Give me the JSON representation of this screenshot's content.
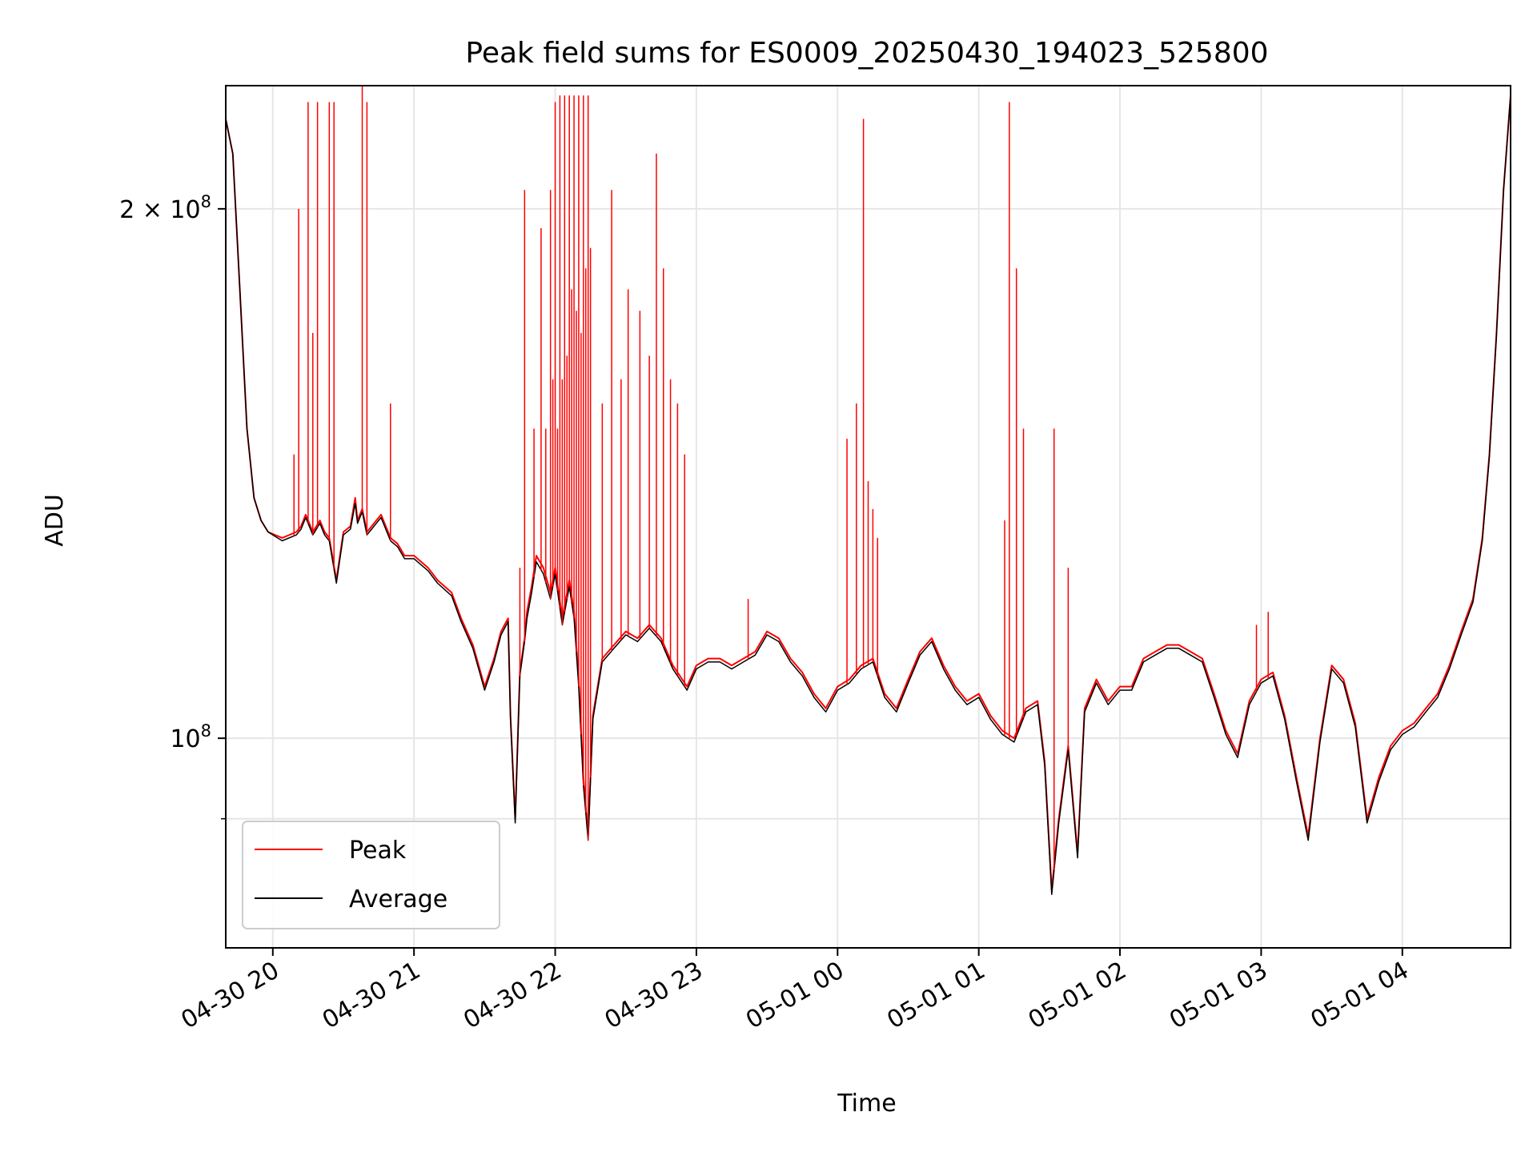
{
  "chart_data": {
    "type": "line",
    "title": "Peak field sums for ES0009_20250430_194023_525800",
    "xlabel": "Time",
    "ylabel": "ADU",
    "y_scale": "log",
    "ylim": [
      76000000,
      235000000
    ],
    "xlim": [
      "2025-04-30 19:40",
      "2025-05-01 04:46"
    ],
    "grid": true,
    "legend_position": "lower-left",
    "x_ticks": [
      {
        "t": "2025-04-30 20:00",
        "label": "04-30 20"
      },
      {
        "t": "2025-04-30 21:00",
        "label": "04-30 21"
      },
      {
        "t": "2025-04-30 22:00",
        "label": "04-30 22"
      },
      {
        "t": "2025-04-30 23:00",
        "label": "04-30 23"
      },
      {
        "t": "2025-05-01 00:00",
        "label": "05-01 00"
      },
      {
        "t": "2025-05-01 01:00",
        "label": "05-01 01"
      },
      {
        "t": "2025-05-01 02:00",
        "label": "05-01 02"
      },
      {
        "t": "2025-05-01 03:00",
        "label": "05-01 03"
      },
      {
        "t": "2025-05-01 04:00",
        "label": "05-01 04"
      }
    ],
    "y_ticks": [
      {
        "value": 100000000,
        "base": "10",
        "exp": "8",
        "coef": ""
      },
      {
        "value": 200000000,
        "base": "10",
        "exp": "8",
        "coef": "2 × "
      }
    ],
    "y_minor_ticks": [
      90000000
    ],
    "series": [
      {
        "name": "Peak",
        "color": "#ff0000",
        "x": [
          "2025-04-30 19:40",
          "2025-04-30 19:43",
          "2025-04-30 19:46",
          "2025-04-30 19:49",
          "2025-04-30 19:52",
          "2025-04-30 19:55",
          "2025-04-30 19:58",
          "2025-04-30 20:04",
          "2025-04-30 20:10",
          "2025-04-30 20:12",
          "2025-04-30 20:14",
          "2025-04-30 20:17",
          "2025-04-30 20:20",
          "2025-04-30 20:22",
          "2025-04-30 20:24",
          "2025-04-30 20:27",
          "2025-04-30 20:30",
          "2025-04-30 20:33",
          "2025-04-30 20:35",
          "2025-04-30 20:36",
          "2025-04-30 20:38",
          "2025-04-30 20:40",
          "2025-04-30 20:42",
          "2025-04-30 20:44",
          "2025-04-30 20:46",
          "2025-04-30 20:50",
          "2025-04-30 20:53",
          "2025-04-30 20:56",
          "2025-04-30 21:00",
          "2025-04-30 21:06",
          "2025-04-30 21:10",
          "2025-04-30 21:16",
          "2025-04-30 21:20",
          "2025-04-30 21:25",
          "2025-04-30 21:30",
          "2025-04-30 21:34",
          "2025-04-30 21:37",
          "2025-04-30 21:40",
          "2025-04-30 21:41",
          "2025-04-30 21:43",
          "2025-04-30 21:45",
          "2025-04-30 21:47",
          "2025-04-30 21:48",
          "2025-04-30 21:50",
          "2025-04-30 21:52",
          "2025-04-30 21:55",
          "2025-04-30 21:58",
          "2025-04-30 22:00",
          "2025-04-30 22:03",
          "2025-04-30 22:06",
          "2025-04-30 22:08",
          "2025-04-30 22:10",
          "2025-04-30 22:12",
          "2025-04-30 22:14",
          "2025-04-30 22:16",
          "2025-04-30 22:20",
          "2025-04-30 22:25",
          "2025-04-30 22:30",
          "2025-04-30 22:35",
          "2025-04-30 22:40",
          "2025-04-30 22:45",
          "2025-04-30 22:50",
          "2025-04-30 22:56",
          "2025-04-30 23:00",
          "2025-04-30 23:05",
          "2025-04-30 23:10",
          "2025-04-30 23:15",
          "2025-04-30 23:20",
          "2025-04-30 23:25",
          "2025-04-30 23:30",
          "2025-04-30 23:35",
          "2025-04-30 23:40",
          "2025-04-30 23:45",
          "2025-04-30 23:50",
          "2025-04-30 23:55",
          "2025-05-01 00:00",
          "2025-05-01 00:05",
          "2025-05-01 00:10",
          "2025-05-01 00:15",
          "2025-05-01 00:20",
          "2025-05-01 00:25",
          "2025-05-01 00:30",
          "2025-05-01 00:35",
          "2025-05-01 00:40",
          "2025-05-01 00:45",
          "2025-05-01 00:50",
          "2025-05-01 00:55",
          "2025-05-01 01:00",
          "2025-05-01 01:05",
          "2025-05-01 01:10",
          "2025-05-01 01:15",
          "2025-05-01 01:20",
          "2025-05-01 01:25",
          "2025-05-01 01:28",
          "2025-05-01 01:31",
          "2025-05-01 01:34",
          "2025-05-01 01:38",
          "2025-05-01 01:42",
          "2025-05-01 01:45",
          "2025-05-01 01:50",
          "2025-05-01 01:55",
          "2025-05-01 02:00",
          "2025-05-01 02:05",
          "2025-05-01 02:10",
          "2025-05-01 02:15",
          "2025-05-01 02:20",
          "2025-05-01 02:25",
          "2025-05-01 02:30",
          "2025-05-01 02:35",
          "2025-05-01 02:40",
          "2025-05-01 02:45",
          "2025-05-01 02:50",
          "2025-05-01 02:55",
          "2025-05-01 03:00",
          "2025-05-01 03:05",
          "2025-05-01 03:10",
          "2025-05-01 03:15",
          "2025-05-01 03:20",
          "2025-05-01 03:25",
          "2025-05-01 03:30",
          "2025-05-01 03:35",
          "2025-05-01 03:40",
          "2025-05-01 03:45",
          "2025-05-01 03:50",
          "2025-05-01 03:55",
          "2025-05-01 04:00",
          "2025-05-01 04:05",
          "2025-05-01 04:10",
          "2025-05-01 04:15",
          "2025-05-01 04:20",
          "2025-05-01 04:25",
          "2025-05-01 04:30",
          "2025-05-01 04:34",
          "2025-05-01 04:37",
          "2025-05-01 04:40",
          "2025-05-01 04:43",
          "2025-05-01 04:46"
        ],
        "values": [
          225000000,
          215000000,
          180000000,
          150000000,
          137000000,
          133000000,
          131000000,
          130000000,
          131000000,
          132000000,
          134000000,
          131000000,
          133000000,
          131000000,
          130000000,
          123000000,
          131000000,
          132000000,
          137000000,
          133000000,
          135000000,
          131000000,
          132000000,
          133000000,
          134000000,
          130000000,
          129000000,
          127000000,
          127000000,
          125000000,
          123000000,
          121000000,
          117000000,
          113000000,
          107000000,
          111000000,
          115000000,
          117000000,
          103000000,
          90000000,
          109000000,
          114000000,
          118000000,
          122000000,
          127000000,
          125000000,
          121000000,
          125000000,
          117000000,
          123000000,
          118000000,
          108000000,
          95000000,
          88000000,
          103000000,
          111000000,
          113000000,
          115000000,
          114000000,
          116000000,
          114000000,
          110000000,
          107000000,
          110000000,
          111000000,
          111000000,
          110000000,
          111000000,
          112000000,
          115000000,
          114000000,
          111000000,
          109000000,
          106000000,
          104000000,
          107000000,
          108000000,
          110000000,
          111000000,
          106000000,
          104000000,
          108000000,
          112000000,
          114000000,
          110000000,
          107000000,
          105000000,
          106000000,
          103000000,
          101000000,
          100000000,
          104000000,
          105000000,
          97000000,
          82000000,
          90000000,
          99000000,
          86000000,
          104000000,
          108000000,
          105000000,
          107000000,
          107000000,
          111000000,
          112000000,
          113000000,
          113000000,
          112000000,
          111000000,
          106000000,
          101000000,
          98000000,
          105000000,
          108000000,
          109000000,
          103000000,
          95000000,
          88000000,
          100000000,
          110000000,
          108000000,
          102000000,
          90000000,
          95000000,
          99000000,
          101000000,
          102000000,
          104000000,
          106000000,
          110000000,
          115000000,
          120000000,
          130000000,
          145000000,
          170000000,
          205000000,
          232000000
        ]
      },
      {
        "name": "Average",
        "color": "#000000",
        "x": [
          "2025-04-30 19:40",
          "2025-04-30 19:43",
          "2025-04-30 19:46",
          "2025-04-30 19:49",
          "2025-04-30 19:52",
          "2025-04-30 19:55",
          "2025-04-30 19:58",
          "2025-04-30 20:04",
          "2025-04-30 20:10",
          "2025-04-30 20:12",
          "2025-04-30 20:14",
          "2025-04-30 20:17",
          "2025-04-30 20:20",
          "2025-04-30 20:22",
          "2025-04-30 20:24",
          "2025-04-30 20:27",
          "2025-04-30 20:30",
          "2025-04-30 20:33",
          "2025-04-30 20:35",
          "2025-04-30 20:36",
          "2025-04-30 20:38",
          "2025-04-30 20:40",
          "2025-04-30 20:42",
          "2025-04-30 20:44",
          "2025-04-30 20:46",
          "2025-04-30 20:50",
          "2025-04-30 20:53",
          "2025-04-30 20:56",
          "2025-04-30 21:00",
          "2025-04-30 21:06",
          "2025-04-30 21:10",
          "2025-04-30 21:16",
          "2025-04-30 21:20",
          "2025-04-30 21:25",
          "2025-04-30 21:30",
          "2025-04-30 21:34",
          "2025-04-30 21:37",
          "2025-04-30 21:40",
          "2025-04-30 21:41",
          "2025-04-30 21:43",
          "2025-04-30 21:45",
          "2025-04-30 21:47",
          "2025-04-30 21:48",
          "2025-04-30 21:50",
          "2025-04-30 21:52",
          "2025-04-30 21:55",
          "2025-04-30 21:58",
          "2025-04-30 22:00",
          "2025-04-30 22:03",
          "2025-04-30 22:06",
          "2025-04-30 22:08",
          "2025-04-30 22:10",
          "2025-04-30 22:12",
          "2025-04-30 22:14",
          "2025-04-30 22:16",
          "2025-04-30 22:20",
          "2025-04-30 22:25",
          "2025-04-30 22:30",
          "2025-04-30 22:35",
          "2025-04-30 22:40",
          "2025-04-30 22:45",
          "2025-04-30 22:50",
          "2025-04-30 22:56",
          "2025-04-30 23:00",
          "2025-04-30 23:05",
          "2025-04-30 23:10",
          "2025-04-30 23:15",
          "2025-04-30 23:20",
          "2025-04-30 23:25",
          "2025-04-30 23:30",
          "2025-04-30 23:35",
          "2025-04-30 23:40",
          "2025-04-30 23:45",
          "2025-04-30 23:50",
          "2025-04-30 23:55",
          "2025-05-01 00:00",
          "2025-05-01 00:05",
          "2025-05-01 00:10",
          "2025-05-01 00:15",
          "2025-05-01 00:20",
          "2025-05-01 00:25",
          "2025-05-01 00:30",
          "2025-05-01 00:35",
          "2025-05-01 00:40",
          "2025-05-01 00:45",
          "2025-05-01 00:50",
          "2025-05-01 00:55",
          "2025-05-01 01:00",
          "2025-05-01 01:05",
          "2025-05-01 01:10",
          "2025-05-01 01:15",
          "2025-05-01 01:20",
          "2025-05-01 01:25",
          "2025-05-01 01:28",
          "2025-05-01 01:31",
          "2025-05-01 01:34",
          "2025-05-01 01:38",
          "2025-05-01 01:42",
          "2025-05-01 01:45",
          "2025-05-01 01:50",
          "2025-05-01 01:55",
          "2025-05-01 02:00",
          "2025-05-01 02:05",
          "2025-05-01 02:10",
          "2025-05-01 02:15",
          "2025-05-01 02:20",
          "2025-05-01 02:25",
          "2025-05-01 02:30",
          "2025-05-01 02:35",
          "2025-05-01 02:40",
          "2025-05-01 02:45",
          "2025-05-01 02:50",
          "2025-05-01 02:55",
          "2025-05-01 03:00",
          "2025-05-01 03:05",
          "2025-05-01 03:10",
          "2025-05-01 03:15",
          "2025-05-01 03:20",
          "2025-05-01 03:25",
          "2025-05-01 03:30",
          "2025-05-01 03:35",
          "2025-05-01 03:40",
          "2025-05-01 03:45",
          "2025-05-01 03:50",
          "2025-05-01 03:55",
          "2025-05-01 04:00",
          "2025-05-01 04:05",
          "2025-05-01 04:10",
          "2025-05-01 04:15",
          "2025-05-01 04:20",
          "2025-05-01 04:25",
          "2025-05-01 04:30",
          "2025-05-01 04:34",
          "2025-05-01 04:37",
          "2025-05-01 04:40",
          "2025-05-01 04:43",
          "2025-05-01 04:46"
        ],
        "values": [
          225000000,
          215000000,
          180000000,
          150000000,
          137000000,
          133000000,
          131000000,
          129500000,
          130500000,
          131500000,
          133500000,
          130500000,
          132500000,
          130500000,
          129500000,
          122500000,
          130500000,
          131500000,
          136000000,
          132500000,
          134500000,
          130500000,
          131500000,
          132500000,
          133500000,
          129500000,
          128500000,
          126500000,
          126500000,
          124500000,
          122500000,
          120500000,
          116500000,
          112500000,
          106500000,
          110500000,
          114500000,
          116500000,
          102500000,
          89500000,
          108500000,
          113500000,
          117000000,
          121000000,
          126000000,
          124000000,
          120000000,
          124000000,
          116000000,
          122000000,
          117000000,
          107000000,
          94000000,
          87500000,
          102500000,
          110500000,
          112500000,
          114500000,
          113500000,
          115500000,
          113500000,
          109500000,
          106500000,
          109500000,
          110500000,
          110500000,
          109500000,
          110500000,
          111500000,
          114500000,
          113500000,
          110500000,
          108500000,
          105500000,
          103500000,
          106500000,
          107500000,
          109500000,
          110500000,
          105500000,
          103500000,
          107500000,
          111500000,
          113500000,
          109500000,
          106500000,
          104500000,
          105500000,
          102500000,
          100500000,
          99500000,
          103500000,
          104500000,
          96500000,
          81500000,
          89500000,
          98500000,
          85500000,
          103500000,
          107500000,
          104500000,
          106500000,
          106500000,
          110500000,
          111500000,
          112500000,
          112500000,
          111500000,
          110500000,
          105500000,
          100500000,
          97500000,
          104500000,
          107500000,
          108500000,
          102500000,
          94500000,
          87500000,
          99500000,
          109500000,
          107500000,
          101500000,
          89500000,
          94500000,
          98500000,
          100500000,
          101500000,
          103500000,
          105500000,
          109500000,
          114500000,
          119500000,
          129500000,
          144500000,
          169500000,
          205000000,
          232000000
        ]
      }
    ],
    "peak_spikes": {
      "x": [
        "2025-04-30 20:09",
        "2025-04-30 20:11",
        "2025-04-30 20:15",
        "2025-04-30 20:17",
        "2025-04-30 20:19",
        "2025-04-30 20:24",
        "2025-04-30 20:26",
        "2025-04-30 20:38",
        "2025-04-30 20:40",
        "2025-04-30 20:50",
        "2025-04-30 21:45",
        "2025-04-30 21:47",
        "2025-04-30 21:51",
        "2025-04-30 21:54",
        "2025-04-30 21:56",
        "2025-04-30 21:58",
        "2025-04-30 21:59",
        "2025-04-30 22:00",
        "2025-04-30 22:01",
        "2025-04-30 22:02",
        "2025-04-30 22:03",
        "2025-04-30 22:04",
        "2025-04-30 22:05",
        "2025-04-30 22:06",
        "2025-04-30 22:07",
        "2025-04-30 22:08",
        "2025-04-30 22:09",
        "2025-04-30 22:10",
        "2025-04-30 22:11",
        "2025-04-30 22:12",
        "2025-04-30 22:13",
        "2025-04-30 22:14",
        "2025-04-30 22:15",
        "2025-04-30 22:20",
        "2025-04-30 22:24",
        "2025-04-30 22:28",
        "2025-04-30 22:31",
        "2025-04-30 22:36",
        "2025-04-30 22:40",
        "2025-04-30 22:43",
        "2025-04-30 22:46",
        "2025-04-30 22:49",
        "2025-04-30 22:52",
        "2025-04-30 22:55",
        "2025-04-30 23:22",
        "2025-05-01 00:04",
        "2025-05-01 00:08",
        "2025-05-01 00:11",
        "2025-05-01 00:13",
        "2025-05-01 00:15",
        "2025-05-01 00:17",
        "2025-05-01 01:11",
        "2025-05-01 01:13",
        "2025-05-01 01:16",
        "2025-05-01 01:19",
        "2025-05-01 01:32",
        "2025-05-01 01:38",
        "2025-05-01 02:58",
        "2025-05-01 03:03"
      ],
      "values": [
        145000000,
        200000000,
        230000000,
        170000000,
        230000000,
        230000000,
        230000000,
        235000000,
        230000000,
        155000000,
        125000000,
        205000000,
        150000000,
        195000000,
        150000000,
        205000000,
        160000000,
        230000000,
        150000000,
        232000000,
        160000000,
        232000000,
        165000000,
        232000000,
        180000000,
        232000000,
        175000000,
        232000000,
        170000000,
        232000000,
        185000000,
        232000000,
        190000000,
        155000000,
        205000000,
        160000000,
        180000000,
        175000000,
        165000000,
        215000000,
        185000000,
        160000000,
        155000000,
        145000000,
        120000000,
        148000000,
        155000000,
        225000000,
        140000000,
        135000000,
        130000000,
        133000000,
        230000000,
        185000000,
        150000000,
        150000000,
        125000000,
        116000000,
        118000000
      ]
    }
  }
}
